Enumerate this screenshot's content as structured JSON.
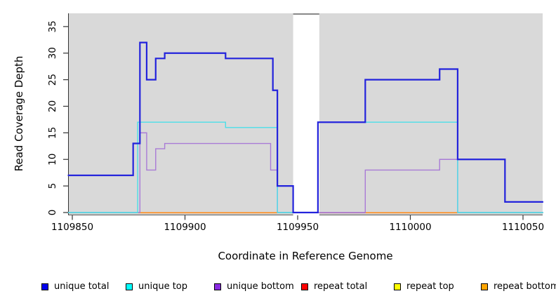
{
  "chart_data": {
    "type": "line",
    "subtype": "step",
    "title": "",
    "xlabel": "Coordinate in Reference Genome",
    "ylabel": "Read Coverage Depth",
    "x_ticks": [
      1109850,
      1109900,
      1109950,
      1110000,
      1110050
    ],
    "y_ticks": [
      0,
      5,
      10,
      15,
      20,
      25,
      30,
      35
    ],
    "xlim": [
      1109848,
      1110059
    ],
    "ylim": [
      -0.6,
      37.5
    ],
    "grid": false,
    "panel_bg": "#d9d9d9",
    "masked_region": {
      "from": 1109948,
      "to": 1109959.6,
      "fill": "#ffffff",
      "cap_color": "#888888"
    },
    "series": [
      {
        "name": "unique total",
        "color": "#2323dc",
        "width": 2.2,
        "segments": [
          {
            "steps": [
              [
                1109848,
                7
              ],
              [
                1109877,
                13
              ],
              [
                1109880,
                32
              ],
              [
                1109883,
                25
              ],
              [
                1109887,
                29
              ],
              [
                1109891,
                30
              ],
              [
                1109918,
                29
              ],
              [
                1109939,
                23
              ],
              [
                1109941,
                5
              ],
              [
                1109948,
                0
              ],
              [
                1109959,
                17
              ],
              [
                1109980,
                25
              ],
              [
                1110013,
                27
              ],
              [
                1110021,
                10
              ],
              [
                1110042,
                2
              ]
            ],
            "end": 1110059
          }
        ]
      },
      {
        "name": "unique top",
        "color": "#4adfe9",
        "width": 1.4,
        "segments": [
          {
            "steps": [
              [
                1109848,
                0
              ],
              [
                1109879,
                17
              ],
              [
                1109918,
                16
              ],
              [
                1109941,
                0
              ]
            ],
            "end": 1109948
          },
          {
            "steps": [
              [
                1109959,
                17
              ],
              [
                1110021,
                0
              ]
            ],
            "end": 1110059
          }
        ]
      },
      {
        "name": "unique bottom",
        "color": "#a97bd6",
        "width": 1.4,
        "segments": [
          {
            "steps": [
              [
                1109848,
                0
              ],
              [
                1109880,
                15
              ],
              [
                1109883,
                8
              ],
              [
                1109887,
                12
              ],
              [
                1109891,
                13
              ],
              [
                1109938,
                8
              ],
              [
                1109941,
                0
              ]
            ],
            "end": 1109948
          },
          {
            "steps": [
              [
                1109959,
                0
              ],
              [
                1109980,
                8
              ],
              [
                1110013,
                10
              ],
              [
                1110021,
                0
              ]
            ],
            "end": 1110059
          }
        ]
      },
      {
        "name": "repeat total",
        "color": "#cc2222",
        "width": 1.2,
        "constant": 0,
        "segments": []
      },
      {
        "name": "repeat top",
        "color": "#eeee22",
        "width": 1.2,
        "constant": 0,
        "segments": []
      },
      {
        "name": "repeat bottom",
        "color": "#ff8c1a",
        "width": 1.2,
        "constant": 0,
        "segments": []
      }
    ],
    "baseline_segments": [
      {
        "from": 1109848,
        "to": 1109879,
        "color": "#8fcf9c"
      },
      {
        "from": 1109879,
        "to": 1109941,
        "color": "#ff8c1a"
      },
      {
        "from": 1109941,
        "to": 1109948,
        "color": "#8fcf9c"
      },
      {
        "from": 1109959.6,
        "to": 1109980,
        "color": "#b5507a"
      },
      {
        "from": 1109980,
        "to": 1110021,
        "color": "#ff8c1a"
      },
      {
        "from": 1110021,
        "to": 1110059,
        "color": "#8fcf9c"
      }
    ],
    "legend": {
      "position": "bottom",
      "items": [
        {
          "label": "unique total",
          "color": "#0000ee"
        },
        {
          "label": "unique top",
          "color": "#00ffff"
        },
        {
          "label": "unique bottom",
          "color": "#8a2be2"
        },
        {
          "label": "repeat total",
          "color": "#ff0000"
        },
        {
          "label": "repeat top",
          "color": "#ffff00"
        },
        {
          "label": "repeat bottom",
          "color": "#ffa500"
        }
      ]
    }
  }
}
